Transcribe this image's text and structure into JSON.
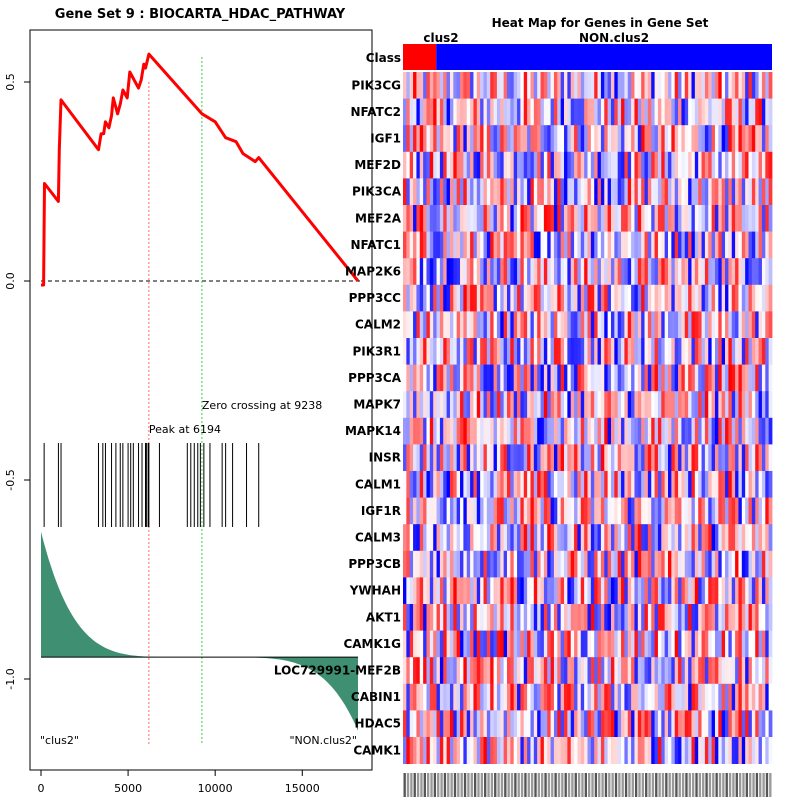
{
  "chart_data": [
    {
      "type": "line",
      "title": "Gene Set  9 : BIOCARTA_HDAC_PATHWAY",
      "xlim": [
        0,
        18300
      ],
      "ylim": [
        -1.2,
        0.65
      ],
      "x_ticks": [
        0,
        5000,
        10000,
        15000
      ],
      "y_ticks": [
        0.5,
        0.0,
        -0.5,
        -1.0
      ],
      "x_tick_labels": [
        "0",
        "5000",
        "10000",
        "15000"
      ],
      "y_tick_labels": [
        "0.5",
        "0.0",
        "-0.5",
        "-1.0"
      ],
      "enrichment_curve": [
        [
          0,
          -0.01
        ],
        [
          150,
          -0.01
        ],
        [
          200,
          0.245
        ],
        [
          1000,
          0.2
        ],
        [
          1050,
          0.33
        ],
        [
          1150,
          0.455
        ],
        [
          3300,
          0.33
        ],
        [
          3450,
          0.37
        ],
        [
          3600,
          0.37
        ],
        [
          3700,
          0.4
        ],
        [
          3900,
          0.385
        ],
        [
          4050,
          0.415
        ],
        [
          4150,
          0.46
        ],
        [
          4400,
          0.42
        ],
        [
          4550,
          0.445
        ],
        [
          4700,
          0.48
        ],
        [
          4950,
          0.46
        ],
        [
          5100,
          0.525
        ],
        [
          5600,
          0.485
        ],
        [
          5750,
          0.505
        ],
        [
          5900,
          0.545
        ],
        [
          6000,
          0.535
        ],
        [
          6194,
          0.57
        ],
        [
          9238,
          0.42
        ],
        [
          10000,
          0.4
        ],
        [
          10600,
          0.36
        ],
        [
          11200,
          0.35
        ],
        [
          11600,
          0.32
        ],
        [
          12300,
          0.3
        ],
        [
          12500,
          0.31
        ],
        [
          18200,
          0.0
        ]
      ],
      "hit_positions": [
        180,
        1000,
        1150,
        3300,
        3550,
        3700,
        4050,
        4300,
        4550,
        4700,
        5000,
        5150,
        5300,
        5600,
        5800,
        6000,
        6050,
        6150,
        6194,
        6800,
        8400,
        8600,
        8800,
        9000,
        9150,
        9350,
        9700,
        10400,
        10600,
        11000,
        11800,
        12500
      ],
      "peak": {
        "x": 6194,
        "label": "Peak at 6194",
        "color": "#ff6666"
      },
      "zero_crossing": {
        "x": 9238,
        "label": "Zero crossing at 9238",
        "color": "#44cc44"
      },
      "ranked_metric": {
        "baseline": -0.945,
        "top_value": -0.63,
        "bottom_value": -1.13,
        "fill_color": "#3f8f72"
      },
      "phenotype_labels": {
        "left": "\"clus2\"",
        "right": "\"NON.clus2\""
      }
    },
    {
      "type": "heatmap",
      "title": "Heat Map for Genes in Gene Set",
      "class_row_label": "Class",
      "class_groups": [
        {
          "name": "clus2",
          "fraction": 0.09,
          "color": "#ff0000"
        },
        {
          "name": "NON.clus2",
          "fraction": 0.91,
          "color": "#0000ff"
        }
      ],
      "genes": [
        "PIK3CG",
        "NFATC2",
        "IGF1",
        "MEF2D",
        "PIK3CA",
        "MEF2A",
        "NFATC1",
        "MAP2K6",
        "PPP3CC",
        "CALM2",
        "PIK3R1",
        "PPP3CA",
        "MAPK7",
        "MAPK14",
        "INSR",
        "CALM1",
        "IGF1R",
        "CALM3",
        "PPP3CB",
        "YWHAH",
        "AKT1",
        "CAMK1G",
        "LOC729991-MEF2B",
        "CABIN1",
        "HDAC5",
        "CAMK1"
      ],
      "n_samples": 110,
      "color_scale": {
        "low": "#0000ff",
        "mid": "#ffffff",
        "high": "#ff0000"
      }
    }
  ]
}
